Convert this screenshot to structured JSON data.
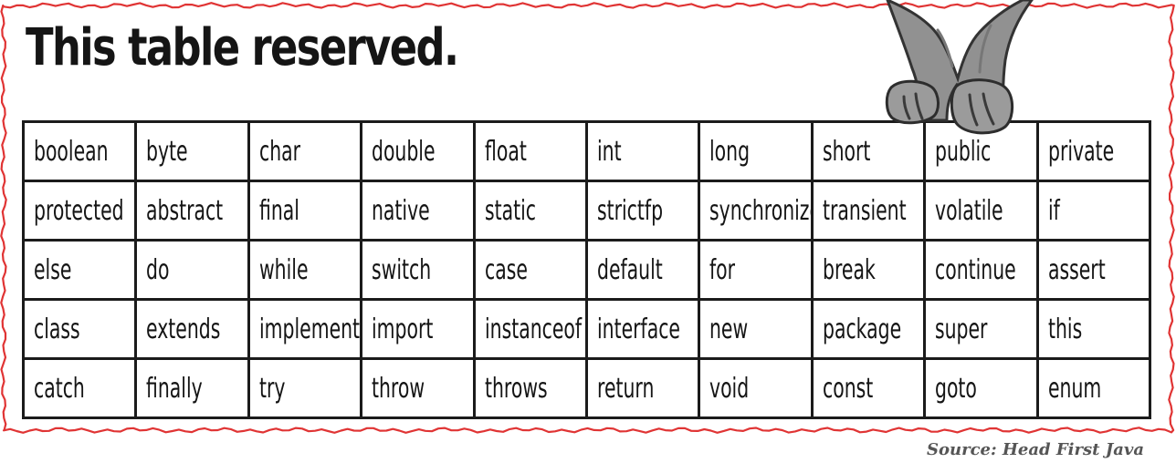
{
  "heading": {
    "title": "This table reserved."
  },
  "table": {
    "rows": [
      [
        "boolean",
        "byte",
        "char",
        "double",
        "float",
        "int",
        "long",
        "short",
        "public",
        "private"
      ],
      [
        "protected",
        "abstract",
        "final",
        "native",
        "static",
        "strictfp",
        "synchronized",
        "transient",
        "volatile",
        "if"
      ],
      [
        "else",
        "do",
        "while",
        "switch",
        "case",
        "default",
        "for",
        "break",
        "continue",
        "assert"
      ],
      [
        "class",
        "extends",
        "implements",
        "import",
        "instanceof",
        "interface",
        "new",
        "package",
        "super",
        "this"
      ],
      [
        "catch",
        "finally",
        "try",
        "throw",
        "throws",
        "return",
        "void",
        "const",
        "goto",
        "enum"
      ]
    ]
  },
  "footer": {
    "source": "Source: Head First Java"
  },
  "style": {
    "border_color": "#e03434",
    "cat_color": "#8f8f8f",
    "text_color": "#151515"
  },
  "icons": {
    "mascot": "cat-paws-icon"
  }
}
